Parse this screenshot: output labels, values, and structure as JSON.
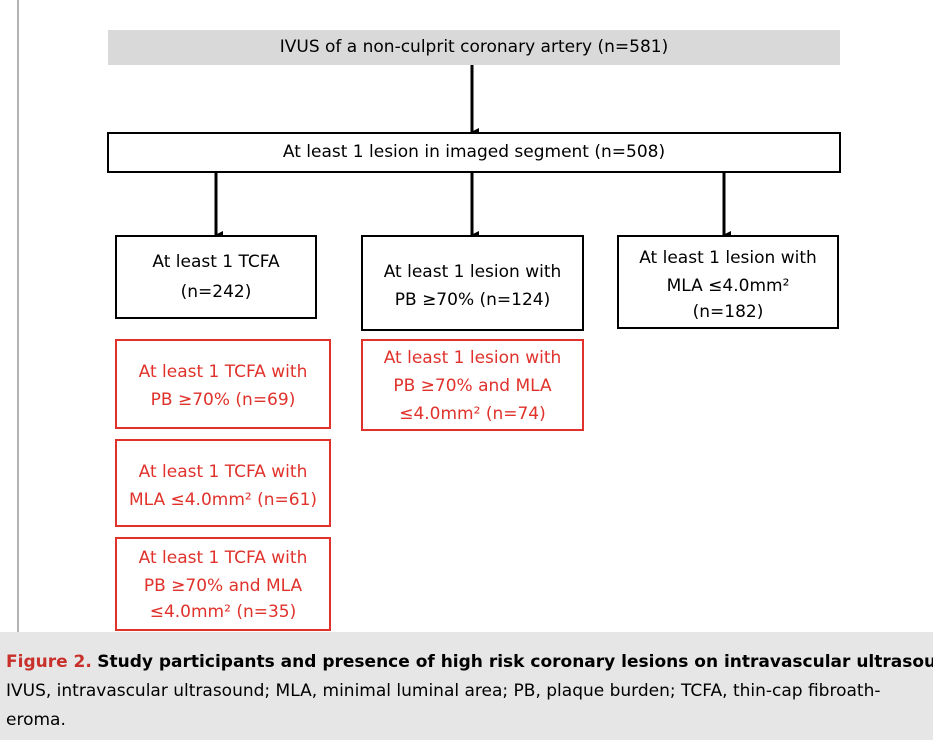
{
  "nodes": [
    {
      "lines": [
        "IVUS of a non-culprit coronary artery (n=581)"
      ]
    },
    {
      "lines": [
        "At least 1 lesion in imaged segment (n=508)"
      ]
    },
    {
      "lines": [
        "At least 1 TCFA",
        "(n=242)"
      ]
    },
    {
      "lines": [
        "At least 1 lesion with",
        "PB ≥70% (n=124)"
      ]
    },
    {
      "lines": [
        "At least 1 lesion with",
        "MLA ≤4.0mm²",
        "(n=182)"
      ]
    },
    {
      "lines": [
        "At least 1 TCFA with",
        "PB ≥70% (n=69)"
      ]
    },
    {
      "lines": [
        "At least 1 TCFA with",
        "MLA ≤4.0mm² (n=61)"
      ]
    },
    {
      "lines": [
        "At least 1 TCFA with",
        "PB ≥70% and MLA",
        "≤4.0mm² (n=35)"
      ]
    },
    {
      "lines": [
        "At least 1 lesion with",
        "PB ≥70% and MLA",
        "≤4.0mm² (n=74)"
      ]
    }
  ],
  "caption": {
    "label": "Figure 2.",
    "title": "Study participants and presence of high risk coronary lesions on intravascular ultrasound",
    "text": "IVUS, intravascular ultrasound; MLA, minimal luminal area; PB, plaque burden; TCFA, thin-cap fibroath-eroma."
  }
}
